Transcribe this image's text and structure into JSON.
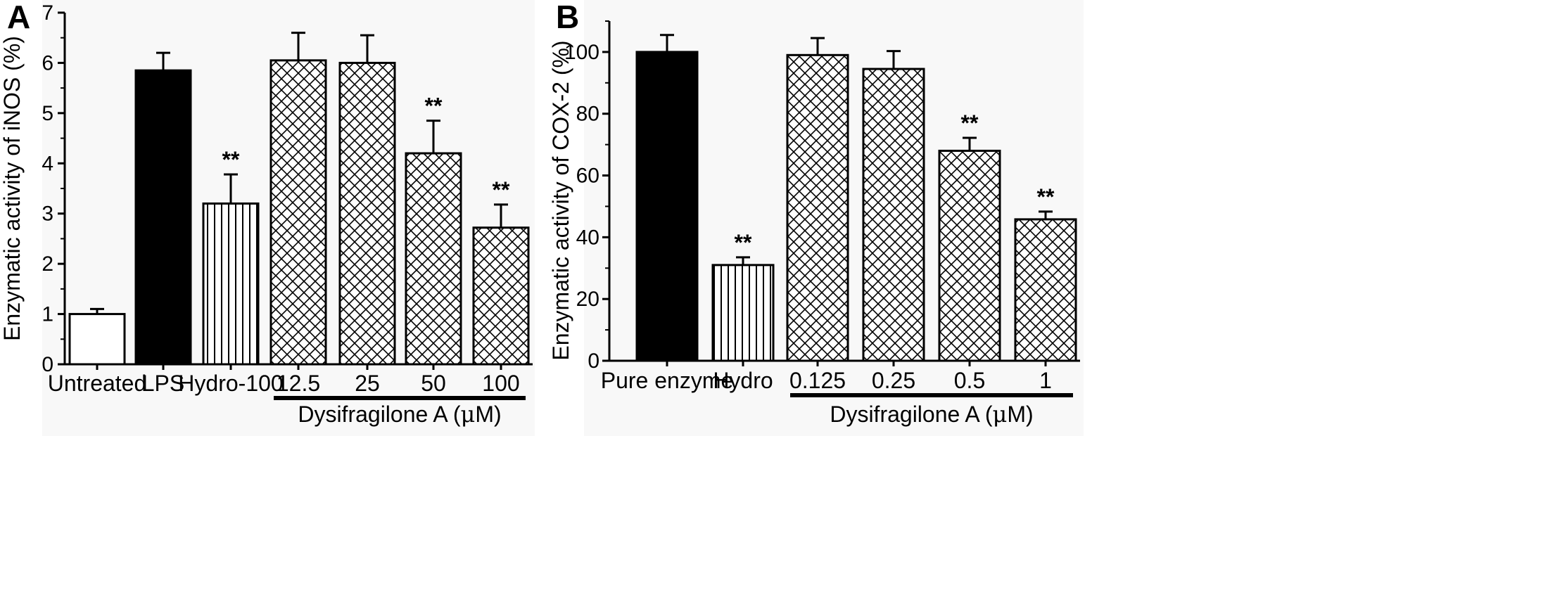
{
  "chart_data": [
    {
      "panel": "A",
      "type": "bar",
      "ylabel": "Enzymatic activity of iNOS (%)",
      "ylim": [
        0,
        7
      ],
      "yticks": [
        "0",
        "1",
        "2",
        "3",
        "4",
        "5",
        "6",
        "7"
      ],
      "categories": [
        "Untreated",
        "LPS",
        "Hydro-100",
        "12.5",
        "25",
        "50",
        "100"
      ],
      "values": [
        1.0,
        5.85,
        3.2,
        6.05,
        6.0,
        4.2,
        2.72
      ],
      "errors": [
        0.1,
        0.35,
        0.58,
        0.55,
        0.55,
        0.65,
        0.46
      ],
      "patterns": [
        "white",
        "black",
        "vertical",
        "crosshatch",
        "crosshatch",
        "crosshatch",
        "crosshatch"
      ],
      "significance": [
        "",
        "",
        "**",
        "",
        "",
        "**",
        "**"
      ],
      "group_label_prefix": "Dysifragilone A (",
      "group_label_mu": "μ",
      "group_label_suffix": "M)",
      "group_start": 3,
      "group_end": 6,
      "grid": false
    },
    {
      "panel": "B",
      "type": "bar",
      "ylabel": "Enzymatic activity of COX-2 (%)",
      "ylim": [
        0,
        110
      ],
      "yticks": [
        "0",
        "20",
        "40",
        "60",
        "80",
        "100"
      ],
      "categories": [
        "Pure enzyme",
        "Hydro",
        "0.125",
        "0.25",
        "0.5",
        "1"
      ],
      "values": [
        100,
        31,
        99,
        94.5,
        68,
        45.8
      ],
      "errors": [
        5.5,
        2.5,
        5.5,
        5.8,
        4.2,
        2.5
      ],
      "patterns": [
        "black",
        "vertical",
        "crosshatch",
        "crosshatch",
        "crosshatch",
        "crosshatch"
      ],
      "significance": [
        "",
        "**",
        "",
        "",
        "**",
        "**"
      ],
      "group_label_prefix": "Dysifragilone A (",
      "group_label_mu": "μ",
      "group_label_suffix": "M)",
      "group_start": 2,
      "group_end": 5,
      "grid": false
    }
  ],
  "colors": {
    "bar_stroke": "#000000",
    "black_fill": "#000000",
    "white_fill": "#ffffff",
    "panel_bg": "#f8f8f8"
  }
}
